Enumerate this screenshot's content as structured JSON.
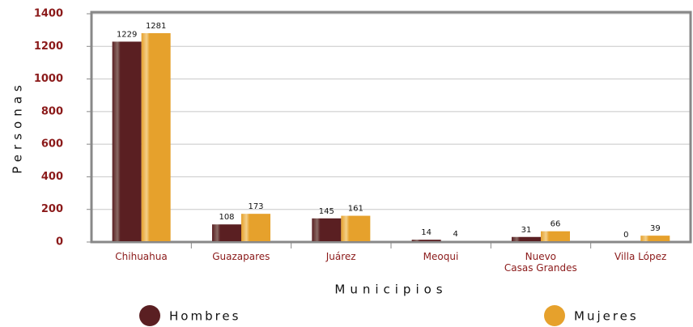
{
  "chart_data": {
    "type": "bar",
    "y_label": "Personas",
    "x_label": "Municipios",
    "categories": [
      "Chihuahua",
      "Guazapares",
      "Juárez",
      "Meoqui",
      "Nuevo\nCasas Grandes",
      "Villa López"
    ],
    "series": [
      {
        "name": "Hombres",
        "color": "#5a1f22",
        "values": [
          1229,
          108,
          145,
          14,
          31,
          0
        ]
      },
      {
        "name": "Mujeres",
        "color": "#e6a12c",
        "values": [
          1281,
          173,
          161,
          4,
          66,
          39
        ]
      }
    ],
    "ylim": [
      0,
      1400
    ],
    "yticks": [
      0,
      200,
      400,
      600,
      800,
      1000,
      1200,
      1400
    ],
    "grid": true
  }
}
